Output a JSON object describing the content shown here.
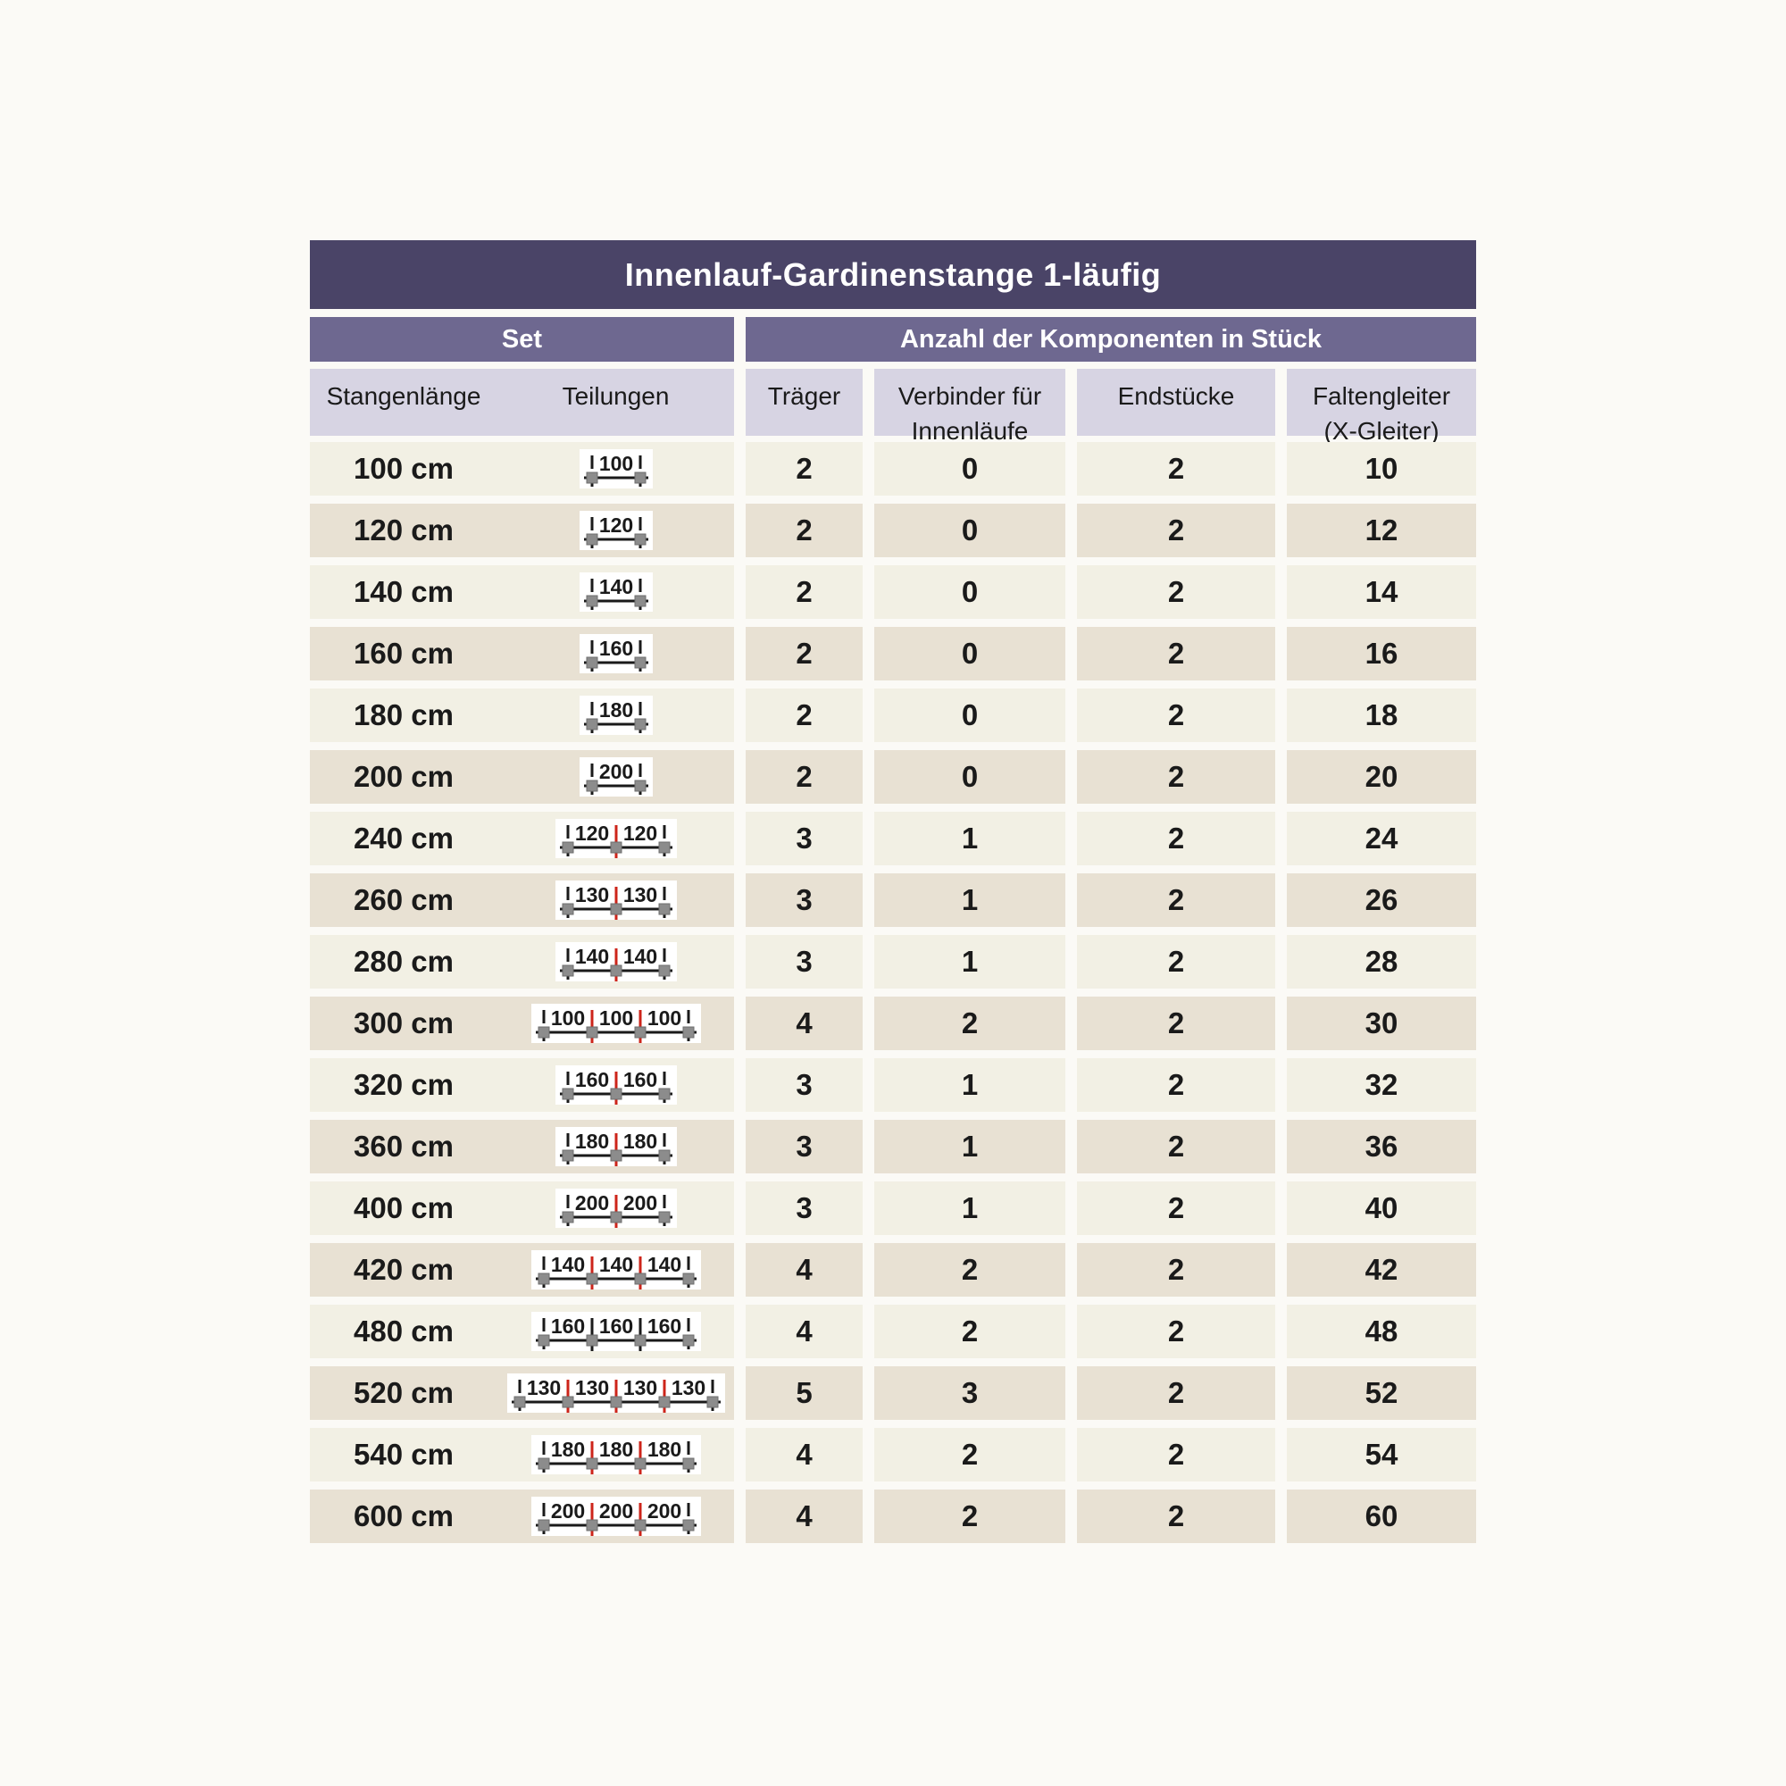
{
  "title": "Innenlauf-Gardinenstange 1-läufig",
  "group_headers": {
    "set": "Set",
    "components": "Anzahl der Komponenten in Stück"
  },
  "column_headers": {
    "stangenlaenge": "Stangenlänge",
    "teilungen": "Teilungen",
    "traeger": "Träger",
    "verbinder": "Verbinder für\nInnenläufe",
    "endstuecke": "Endstücke",
    "faltengleiter": "Faltengleiter\n(X-Gleiter)"
  },
  "colors": {
    "title_bg": "#4a4467",
    "group_bg": "#6e6890",
    "header_bg": "#d7d4e3",
    "row_light": "#f2f0e4",
    "row_dark": "#e8e1d3",
    "page_bg": "#fbfaf6",
    "joint_red": "#cd241a",
    "bracket_gray": "#8c8c8c",
    "text": "#1a1a1a"
  },
  "chart_data": {
    "type": "table",
    "title": "Innenlauf-Gardinenstange 1-läufig",
    "column_groups": [
      "Set",
      "Anzahl der Komponenten in Stück"
    ],
    "columns": [
      "Stangenlänge",
      "Teilungen",
      "Träger",
      "Verbinder für Innenläufe",
      "Endstücke",
      "Faltengleiter (X-Gleiter)"
    ],
    "rows": [
      {
        "stangenlaenge": "100 cm",
        "teilungen": [
          100
        ],
        "joint_tick": "red",
        "traeger": 2,
        "verbinder": 0,
        "endstuecke": 2,
        "faltengleiter": 10
      },
      {
        "stangenlaenge": "120 cm",
        "teilungen": [
          120
        ],
        "joint_tick": "red",
        "traeger": 2,
        "verbinder": 0,
        "endstuecke": 2,
        "faltengleiter": 12
      },
      {
        "stangenlaenge": "140 cm",
        "teilungen": [
          140
        ],
        "joint_tick": "red",
        "traeger": 2,
        "verbinder": 0,
        "endstuecke": 2,
        "faltengleiter": 14
      },
      {
        "stangenlaenge": "160 cm",
        "teilungen": [
          160
        ],
        "joint_tick": "red",
        "traeger": 2,
        "verbinder": 0,
        "endstuecke": 2,
        "faltengleiter": 16
      },
      {
        "stangenlaenge": "180 cm",
        "teilungen": [
          180
        ],
        "joint_tick": "red",
        "traeger": 2,
        "verbinder": 0,
        "endstuecke": 2,
        "faltengleiter": 18
      },
      {
        "stangenlaenge": "200 cm",
        "teilungen": [
          200
        ],
        "joint_tick": "red",
        "traeger": 2,
        "verbinder": 0,
        "endstuecke": 2,
        "faltengleiter": 20
      },
      {
        "stangenlaenge": "240 cm",
        "teilungen": [
          120,
          120
        ],
        "joint_tick": "red",
        "traeger": 3,
        "verbinder": 1,
        "endstuecke": 2,
        "faltengleiter": 24
      },
      {
        "stangenlaenge": "260 cm",
        "teilungen": [
          130,
          130
        ],
        "joint_tick": "red",
        "traeger": 3,
        "verbinder": 1,
        "endstuecke": 2,
        "faltengleiter": 26
      },
      {
        "stangenlaenge": "280 cm",
        "teilungen": [
          140,
          140
        ],
        "joint_tick": "red",
        "traeger": 3,
        "verbinder": 1,
        "endstuecke": 2,
        "faltengleiter": 28
      },
      {
        "stangenlaenge": "300 cm",
        "teilungen": [
          100,
          100,
          100
        ],
        "joint_tick": "red",
        "traeger": 4,
        "verbinder": 2,
        "endstuecke": 2,
        "faltengleiter": 30
      },
      {
        "stangenlaenge": "320 cm",
        "teilungen": [
          160,
          160
        ],
        "joint_tick": "red",
        "traeger": 3,
        "verbinder": 1,
        "endstuecke": 2,
        "faltengleiter": 32
      },
      {
        "stangenlaenge": "360 cm",
        "teilungen": [
          180,
          180
        ],
        "joint_tick": "red",
        "traeger": 3,
        "verbinder": 1,
        "endstuecke": 2,
        "faltengleiter": 36
      },
      {
        "stangenlaenge": "400 cm",
        "teilungen": [
          200,
          200
        ],
        "joint_tick": "red",
        "traeger": 3,
        "verbinder": 1,
        "endstuecke": 2,
        "faltengleiter": 40
      },
      {
        "stangenlaenge": "420 cm",
        "teilungen": [
          140,
          140,
          140
        ],
        "joint_tick": "red",
        "traeger": 4,
        "verbinder": 2,
        "endstuecke": 2,
        "faltengleiter": 42
      },
      {
        "stangenlaenge": "480 cm",
        "teilungen": [
          160,
          160,
          160
        ],
        "joint_tick": "black",
        "traeger": 4,
        "verbinder": 2,
        "endstuecke": 2,
        "faltengleiter": 48
      },
      {
        "stangenlaenge": "520 cm",
        "teilungen": [
          130,
          130,
          130,
          130
        ],
        "joint_tick": "red",
        "traeger": 5,
        "verbinder": 3,
        "endstuecke": 2,
        "faltengleiter": 52
      },
      {
        "stangenlaenge": "540 cm",
        "teilungen": [
          180,
          180,
          180
        ],
        "joint_tick": "red",
        "traeger": 4,
        "verbinder": 2,
        "endstuecke": 2,
        "faltengleiter": 54
      },
      {
        "stangenlaenge": "600 cm",
        "teilungen": [
          200,
          200,
          200
        ],
        "joint_tick": "red",
        "traeger": 4,
        "verbinder": 2,
        "endstuecke": 2,
        "faltengleiter": 60
      }
    ]
  }
}
